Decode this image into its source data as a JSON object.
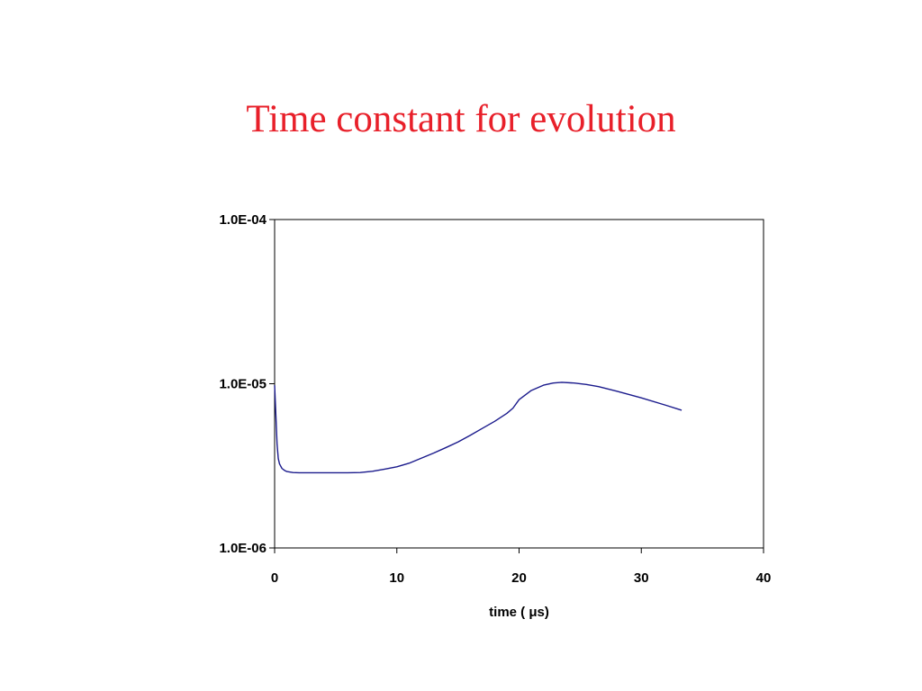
{
  "slide": {
    "title": "Time constant for evolution"
  },
  "chart_data": {
    "type": "line",
    "title": "Time constant for evolution",
    "xlabel": "time (  μs)",
    "ylabel": "",
    "xlim": [
      0,
      40
    ],
    "ylim": [
      1e-06,
      0.0001
    ],
    "yscale": "log",
    "grid": false,
    "x_ticks": [
      0,
      10,
      20,
      30,
      40
    ],
    "x_tick_labels": [
      "0",
      "10",
      "20",
      "30",
      "40"
    ],
    "y_ticks": [
      1e-06,
      1e-05,
      0.0001
    ],
    "y_tick_labels": [
      "1.0E-06",
      "1.0E-05",
      "1.0E-04"
    ],
    "line_color": "#1a1a8c",
    "series": [
      {
        "x": [
          0.0,
          0.1,
          0.2,
          0.3,
          0.4,
          0.6,
          0.8,
          1.0,
          1.5,
          2.0,
          3.0,
          4.0,
          5.0,
          6.0,
          7.0,
          8.0,
          9.0,
          10.0,
          11.0,
          12.0,
          13.0,
          14.0,
          15.0,
          16.0,
          17.0,
          18.0,
          19.0,
          19.5,
          20.0,
          21.0,
          22.0,
          22.8,
          23.5,
          24.5,
          25.5,
          26.5,
          28.0,
          30.0,
          32.0,
          33.3
        ],
        "y": [
          9.8e-06,
          6.5e-06,
          4.3e-06,
          3.5e-06,
          3.25e-06,
          3.05e-06,
          2.97e-06,
          2.92e-06,
          2.88e-06,
          2.87e-06,
          2.87e-06,
          2.87e-06,
          2.87e-06,
          2.87e-06,
          2.88e-06,
          2.93e-06,
          3.02e-06,
          3.12e-06,
          3.28e-06,
          3.52e-06,
          3.78e-06,
          4.08e-06,
          4.42e-06,
          4.85e-06,
          5.35e-06,
          5.9e-06,
          6.6e-06,
          7.1e-06,
          8e-06,
          9.1e-06,
          9.8e-06,
          1.01e-05,
          1.02e-05,
          1.01e-05,
          9.9e-06,
          9.6e-06,
          9e-06,
          8.2e-06,
          7.4e-06,
          6.9e-06
        ]
      }
    ]
  }
}
